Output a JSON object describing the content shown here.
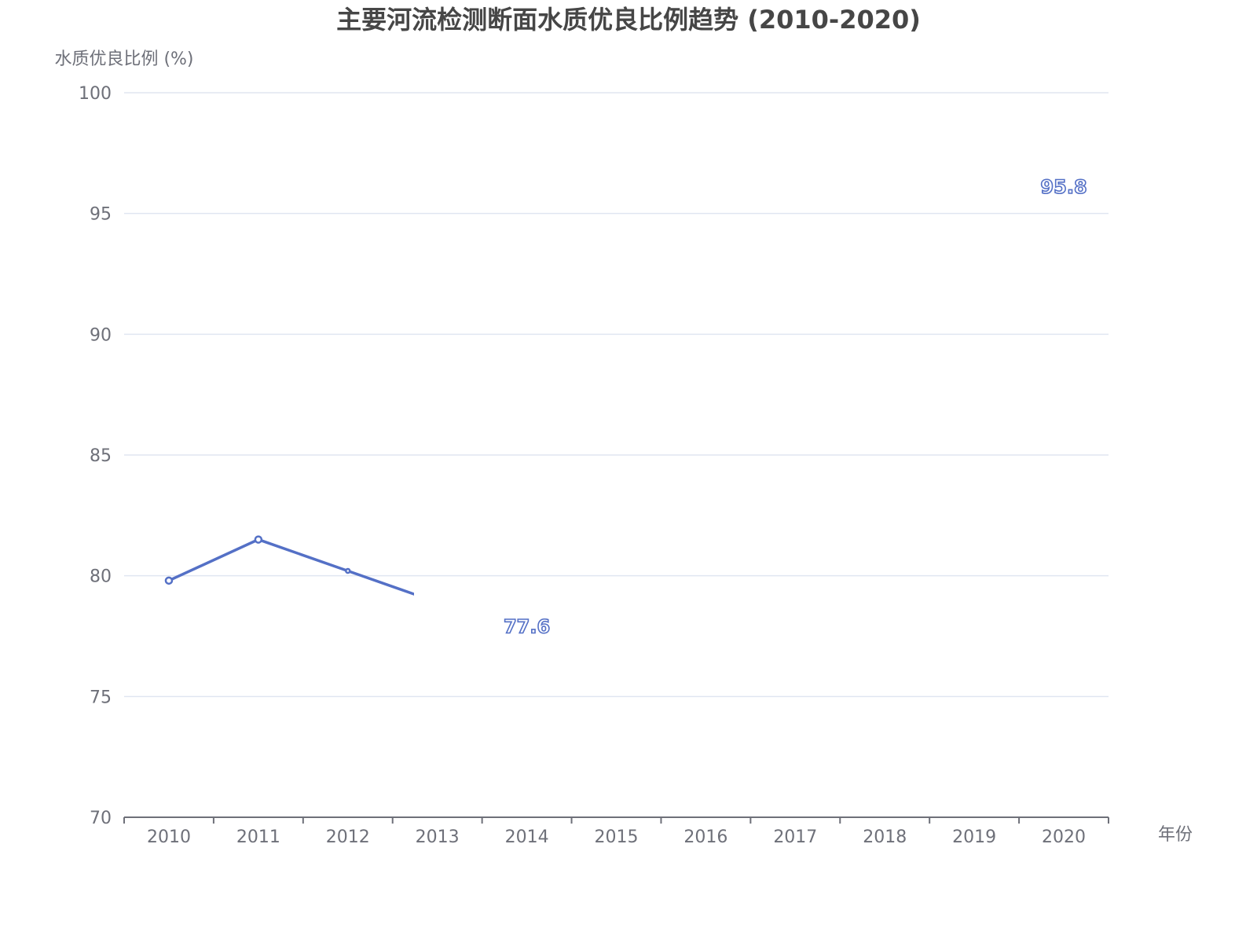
{
  "chart_data": {
    "type": "line",
    "title": "主要河流检测断面水质优良比例趋势 (2010-2020)",
    "xlabel": "年份",
    "ylabel": "水质优良比例 (%)",
    "categories": [
      "2010",
      "2011",
      "2012",
      "2013",
      "2014",
      "2015",
      "2016",
      "2017",
      "2018",
      "2019",
      "2020"
    ],
    "series": [
      {
        "values": [
          79.8,
          81.5,
          80.2,
          null,
          77.6,
          null,
          null,
          null,
          null,
          null,
          95.8
        ]
      }
    ],
    "data_labels": [
      {
        "category": "2014",
        "text": "77.6"
      },
      {
        "category": "2020",
        "text": "95.8"
      }
    ],
    "ylim": [
      70,
      100
    ],
    "yticks": [
      "70",
      "75",
      "80",
      "85",
      "90",
      "95",
      "100"
    ],
    "grid": true,
    "color": "#5470c6"
  }
}
